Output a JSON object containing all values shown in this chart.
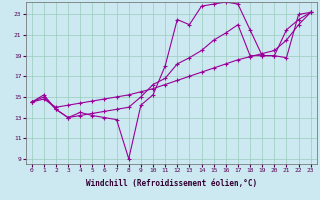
{
  "xlabel": "Windchill (Refroidissement éolien,°C)",
  "background_color": "#cce8f0",
  "grid_color": "#99ccbb",
  "line_color": "#990099",
  "xlim": [
    -0.5,
    23.5
  ],
  "ylim": [
    8.5,
    24.2
  ],
  "xticks": [
    0,
    1,
    2,
    3,
    4,
    5,
    6,
    7,
    8,
    9,
    10,
    11,
    12,
    13,
    14,
    15,
    16,
    17,
    18,
    19,
    20,
    21,
    22,
    23
  ],
  "yticks": [
    9,
    11,
    13,
    15,
    17,
    19,
    21,
    23
  ],
  "line1_x": [
    0,
    1,
    2,
    3,
    4,
    5,
    6,
    7,
    8,
    9,
    10,
    11,
    12,
    13,
    14,
    15,
    16,
    17,
    18,
    19,
    20,
    21,
    22,
    23
  ],
  "line1_y": [
    14.5,
    15.2,
    13.8,
    13.0,
    13.5,
    13.2,
    13.0,
    12.8,
    9.0,
    14.2,
    15.2,
    18.0,
    22.5,
    22.0,
    23.8,
    24.0,
    24.2,
    24.0,
    21.5,
    19.0,
    19.0,
    18.8,
    23.0,
    23.2
  ],
  "line2_x": [
    0,
    1,
    2,
    3,
    4,
    5,
    6,
    7,
    8,
    9,
    10,
    11,
    12,
    13,
    14,
    15,
    16,
    17,
    18,
    19,
    20,
    21,
    22,
    23
  ],
  "line2_y": [
    14.5,
    14.8,
    14.0,
    14.2,
    14.4,
    14.6,
    14.8,
    15.0,
    15.2,
    15.5,
    15.8,
    16.2,
    16.6,
    17.0,
    17.4,
    17.8,
    18.2,
    18.6,
    18.9,
    19.2,
    19.5,
    20.5,
    22.0,
    23.2
  ],
  "line3_x": [
    0,
    1,
    2,
    3,
    4,
    5,
    6,
    7,
    8,
    9,
    10,
    11,
    12,
    13,
    14,
    15,
    16,
    17,
    18,
    19,
    20,
    21,
    22,
    23
  ],
  "line3_y": [
    14.5,
    15.0,
    13.8,
    13.0,
    13.2,
    13.4,
    13.6,
    13.8,
    14.0,
    15.0,
    16.2,
    16.8,
    18.2,
    18.8,
    19.5,
    20.5,
    21.2,
    22.0,
    19.0,
    19.0,
    19.0,
    21.5,
    22.5,
    23.2
  ]
}
